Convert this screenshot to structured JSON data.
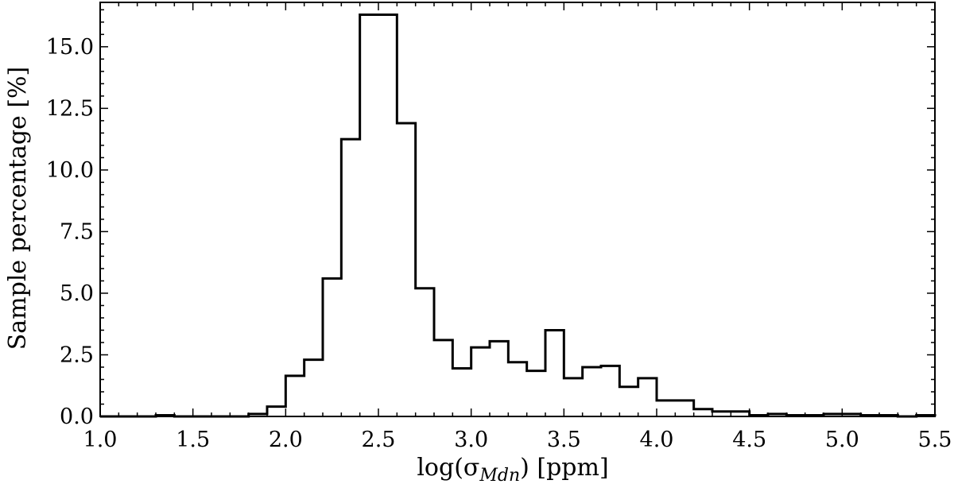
{
  "chart_data": {
    "type": "bar",
    "histogram": true,
    "xlabel_prefix": "log(σ",
    "xlabel_subscript": "Mdn",
    "xlabel_suffix": ") [ppm]",
    "ylabel": "Sample percentage [%]",
    "xlim": [
      1.0,
      5.5
    ],
    "ylim": [
      0.0,
      16.8
    ],
    "grid": false,
    "legend": "none",
    "x_ticks": [
      "1.0",
      "1.5",
      "2.0",
      "2.5",
      "3.0",
      "3.5",
      "4.0",
      "4.5",
      "5.0",
      "5.5"
    ],
    "y_ticks": [
      "0.0",
      "2.5",
      "5.0",
      "7.5",
      "10.0",
      "12.5",
      "15.0"
    ],
    "bin_width": 0.1,
    "bin_start": 1.0,
    "values": [
      0,
      0,
      0,
      0.05,
      0,
      0,
      0,
      0,
      0.1,
      0.4,
      1.65,
      2.3,
      5.6,
      11.25,
      16.3,
      16.3,
      11.9,
      5.2,
      3.1,
      1.95,
      2.8,
      3.05,
      2.2,
      1.85,
      3.5,
      1.55,
      2.0,
      2.05,
      1.2,
      1.55,
      0.65,
      0.65,
      0.3,
      0.2,
      0.2,
      0.05,
      0.1,
      0.05,
      0.05,
      0.1,
      0.1,
      0.05,
      0.05,
      0,
      0.05
    ],
    "line_color": "#000000"
  }
}
